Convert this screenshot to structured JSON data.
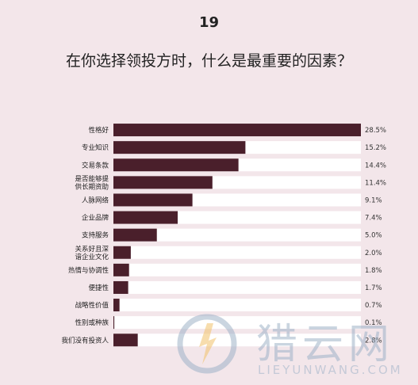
{
  "page": {
    "number": "19",
    "title": "在你选择领投方时，什么是最重要的因素？"
  },
  "watermark": {
    "name_cn": "猎云网",
    "name_en": "LIEYUNWANG.COM"
  },
  "colors": {
    "background": "#f3e6ea",
    "bar_fill": "#4a1f2b",
    "bar_track": "#ffffff"
  },
  "chart_data": {
    "type": "bar",
    "orientation": "horizontal",
    "title": "在你选择领投方时，什么是最重要的因素？",
    "categories": [
      [
        "性格好"
      ],
      [
        "专业知识"
      ],
      [
        "交易条款"
      ],
      [
        "是否能够提",
        "供长期资助"
      ],
      [
        "人脉网络"
      ],
      [
        "企业品牌"
      ],
      [
        "支持服务"
      ],
      [
        "关系好且深",
        "谙企业文化"
      ],
      [
        "热情与协调性"
      ],
      [
        "便捷性"
      ],
      [
        "战略性价值"
      ],
      [
        "性别或种族"
      ],
      [
        "我们没有投资人"
      ]
    ],
    "values": [
      28.5,
      15.2,
      14.4,
      11.4,
      9.1,
      7.4,
      5.0,
      2.0,
      1.8,
      1.7,
      0.7,
      0.1,
      2.8
    ],
    "value_labels": [
      "28.5%",
      "15.2%",
      "14.4%",
      "11.4%",
      "9.1%",
      "7.4%",
      "5.0%",
      "2.0%",
      "1.8%",
      "1.7%",
      "0.7%",
      "0.1%",
      "2.8%"
    ],
    "xlim": [
      0,
      28.5
    ],
    "grid": false,
    "legend": "none"
  }
}
